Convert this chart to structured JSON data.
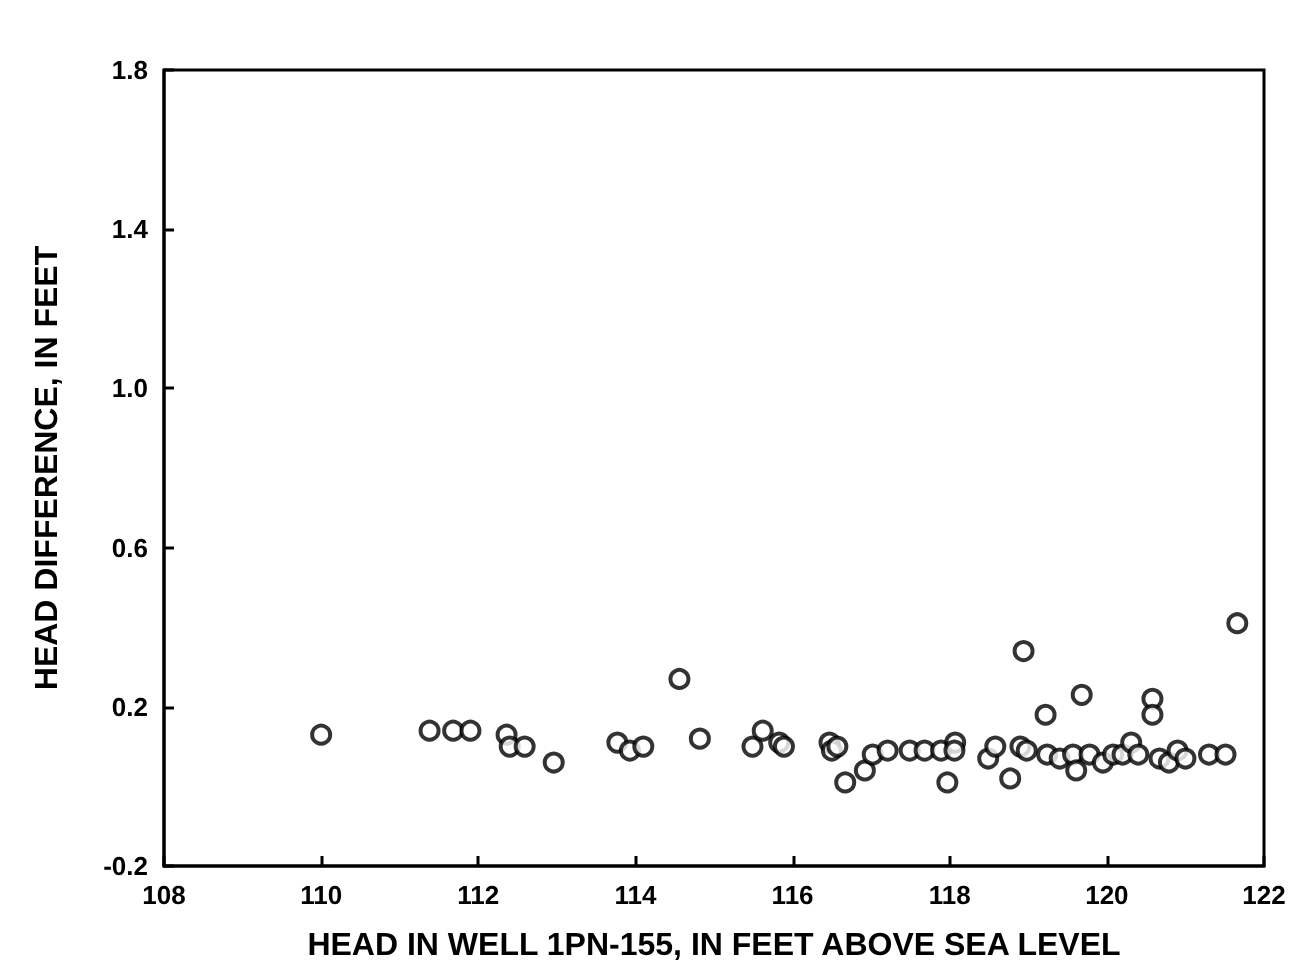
{
  "chart_data": {
    "type": "scatter",
    "xlabel": "HEAD IN WELL 1PN-155, IN FEET ABOVE SEA LEVEL",
    "ylabel": "HEAD DIFFERENCE, IN FEET",
    "xlim": [
      108,
      122
    ],
    "xticks": [
      108,
      110,
      112,
      114,
      116,
      118,
      120,
      122
    ],
    "ylim": [
      -0.2,
      1.8
    ],
    "yticks": [
      -0.2,
      0.2,
      0.6,
      {
        "value": 1,
        "label": "1.0"
      },
      1.4,
      1.8
    ],
    "grid": false,
    "marker": "circle",
    "series": [
      {
        "color": "#000000",
        "x": [
          110.0,
          111.38,
          111.68,
          111.9,
          112.36,
          112.4,
          112.59,
          112.96,
          113.77,
          113.93,
          114.1,
          114.56,
          114.82,
          115.49,
          115.62,
          115.83,
          115.89,
          116.47,
          116.5,
          116.57,
          116.67,
          116.92,
          117.02,
          117.21,
          117.49,
          117.68,
          117.89,
          118.07,
          118.06,
          117.97,
          118.49,
          118.58,
          118.77,
          118.94,
          118.9,
          118.98,
          119.22,
          119.24,
          119.4,
          119.57,
          119.61,
          119.68,
          119.78,
          119.95,
          120.08,
          120.2,
          120.31,
          120.4,
          120.58,
          120.58,
          120.67,
          120.79,
          120.9,
          121.0,
          121.3,
          121.51,
          121.66
        ],
        "values": [
          0.13,
          0.14,
          0.14,
          0.14,
          0.13,
          0.1,
          0.1,
          0.06,
          0.11,
          0.09,
          0.1,
          0.27,
          0.12,
          0.1,
          0.14,
          0.11,
          0.1,
          0.11,
          0.09,
          0.1,
          0.01,
          0.04,
          0.08,
          0.09,
          0.09,
          0.09,
          0.09,
          0.11,
          0.09,
          0.01,
          0.07,
          0.1,
          0.02,
          0.34,
          0.1,
          0.09,
          0.18,
          0.08,
          0.07,
          0.08,
          0.04,
          0.23,
          0.08,
          0.06,
          0.08,
          0.08,
          0.11,
          0.08,
          0.22,
          0.18,
          0.07,
          0.06,
          0.09,
          0.07,
          0.08,
          0.08,
          0.41
        ]
      }
    ]
  }
}
